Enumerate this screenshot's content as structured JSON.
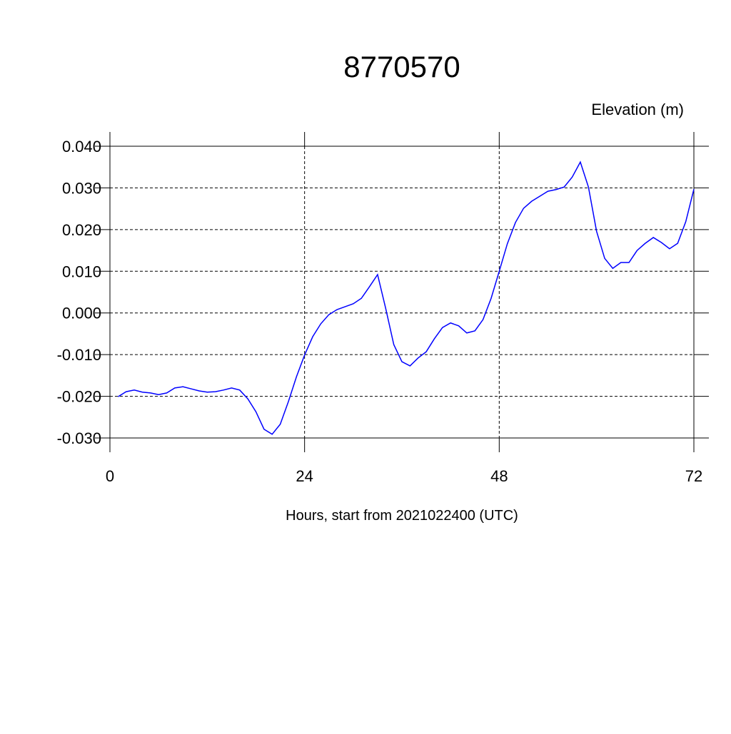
{
  "chart_data": {
    "type": "line",
    "title": "8770570",
    "y_label": "Elevation (m)",
    "x_label": "Hours, start from 2021022400 (UTC)",
    "x": [
      1,
      2,
      3,
      4,
      5,
      6,
      7,
      8,
      9,
      10,
      11,
      12,
      13,
      14,
      15,
      16,
      17,
      18,
      19,
      20,
      21,
      22,
      23,
      24,
      25,
      26,
      27,
      28,
      29,
      30,
      31,
      32,
      33,
      34,
      35,
      36,
      37,
      38,
      39,
      40,
      41,
      42,
      43,
      44,
      45,
      46,
      47,
      48,
      49,
      50,
      51,
      52,
      53,
      54,
      55,
      56,
      57,
      58,
      59,
      60,
      61,
      62,
      63,
      64,
      65,
      66,
      67,
      68,
      69,
      70,
      71,
      72
    ],
    "series": [
      {
        "color": "#0000ff",
        "values": [
          -0.0201,
          -0.0189,
          -0.0185,
          -0.019,
          -0.0192,
          -0.0196,
          -0.0192,
          -0.018,
          -0.0177,
          -0.0182,
          -0.0187,
          -0.019,
          -0.0189,
          -0.0185,
          -0.018,
          -0.0185,
          -0.0206,
          -0.0237,
          -0.0279,
          -0.0291,
          -0.0267,
          -0.0213,
          -0.0153,
          -0.0101,
          -0.0057,
          -0.0026,
          -0.0004,
          0.0008,
          0.0015,
          0.0022,
          0.0035,
          0.0063,
          0.0092,
          0.0011,
          -0.0076,
          -0.0117,
          -0.0127,
          -0.0108,
          -0.0093,
          -0.0062,
          -0.0035,
          -0.0024,
          -0.0031,
          -0.0048,
          -0.0043,
          -0.0016,
          0.0035,
          0.01,
          0.0166,
          0.0217,
          0.0251,
          0.0268,
          0.028,
          0.0292,
          0.0296,
          0.0302,
          0.0326,
          0.0362,
          0.0302,
          0.0196,
          0.0131,
          0.0107,
          0.0121,
          0.0121,
          0.015,
          0.0167,
          0.0181,
          0.0169,
          0.0154,
          0.0167,
          0.0219,
          0.0297
        ]
      }
    ],
    "xlim": [
      0,
      72
    ],
    "xticks": [
      0,
      24,
      48,
      72
    ],
    "ylim": [
      -0.03,
      0.04
    ],
    "yticks": [
      {
        "value": -0.03,
        "label": "-0.030"
      },
      {
        "value": -0.02,
        "label": "-0.020"
      },
      {
        "value": -0.01,
        "label": "-0.010"
      },
      {
        "value": 0,
        "label": "0.000"
      },
      {
        "value": 0.01,
        "label": "0.010"
      },
      {
        "value": 0.02,
        "label": "0.020"
      },
      {
        "value": 0.03,
        "label": "0.030"
      },
      {
        "value": 0.04,
        "label": "0.040"
      }
    ],
    "grid": true
  }
}
